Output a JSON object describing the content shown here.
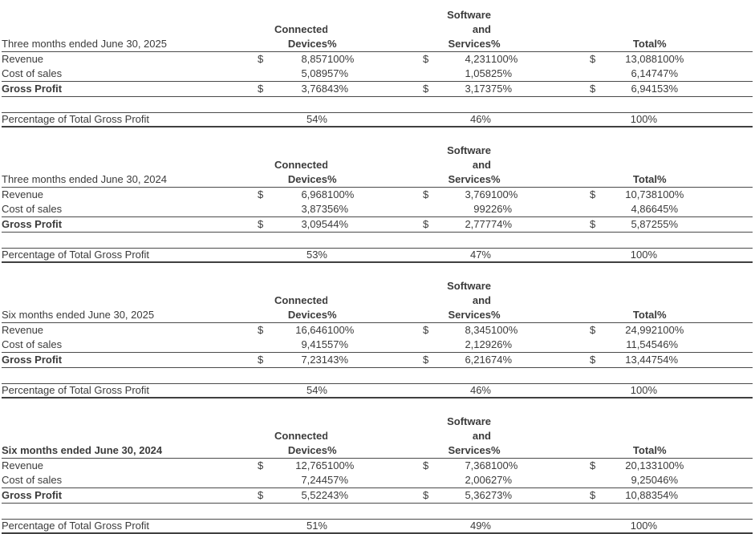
{
  "page": {
    "background": "#ffffff",
    "text_color": "#3b3b3b",
    "rule_color": "#4a4a4a"
  },
  "shared": {
    "currency_symbol": "$",
    "col_headers": {
      "connected_line1": "Connected",
      "connected_line2": "Devices",
      "software_line1": "Software",
      "software_line2": "and",
      "software_line3": "Services",
      "total": "Total",
      "percent": "%"
    },
    "row_labels": {
      "revenue": "Revenue",
      "cost_of_sales": "Cost of sales",
      "gross_profit": "Gross Profit",
      "pct_of_total": "Percentage of Total Gross Profit"
    }
  },
  "tables": [
    {
      "period": "Three months ended June 30, 2025",
      "revenue": {
        "cd": "8,857",
        "cd_pct": "100%",
        "ss": "4,231",
        "ss_pct": "100%",
        "total": "13,088",
        "total_pct": "100%"
      },
      "cost_of_sales": {
        "cd": "5,089",
        "cd_pct": "57%",
        "ss": "1,058",
        "ss_pct": "25%",
        "total": "6,147",
        "total_pct": "47%"
      },
      "gross_profit": {
        "cd": "3,768",
        "cd_pct": "43%",
        "ss": "3,173",
        "ss_pct": "75%",
        "total": "6,941",
        "total_pct": "53%"
      },
      "pct_of_total": {
        "cd": "54%",
        "ss": "46%",
        "total": "100%"
      }
    },
    {
      "period": "Three months ended June 30, 2024",
      "revenue": {
        "cd": "6,968",
        "cd_pct": "100%",
        "ss": "3,769",
        "ss_pct": "100%",
        "total": "10,738",
        "total_pct": "100%"
      },
      "cost_of_sales": {
        "cd": "3,873",
        "cd_pct": "56%",
        "ss": "992",
        "ss_pct": "26%",
        "total": "4,866",
        "total_pct": "45%"
      },
      "gross_profit": {
        "cd": "3,095",
        "cd_pct": "44%",
        "ss": "2,777",
        "ss_pct": "74%",
        "total": "5,872",
        "total_pct": "55%"
      },
      "pct_of_total": {
        "cd": "53%",
        "ss": "47%",
        "total": "100%"
      }
    },
    {
      "period": "Six months ended June 30, 2025",
      "revenue": {
        "cd": "16,646",
        "cd_pct": "100%",
        "ss": "8,345",
        "ss_pct": "100%",
        "total": "24,992",
        "total_pct": "100%"
      },
      "cost_of_sales": {
        "cd": "9,415",
        "cd_pct": "57%",
        "ss": "2,129",
        "ss_pct": "26%",
        "total": "11,545",
        "total_pct": "46%"
      },
      "gross_profit": {
        "cd": "7,231",
        "cd_pct": "43%",
        "ss": "6,216",
        "ss_pct": "74%",
        "total": "13,447",
        "total_pct": "54%"
      },
      "pct_of_total": {
        "cd": "54%",
        "ss": "46%",
        "total": "100%"
      }
    },
    {
      "period": "Six months ended June 30, 2024",
      "revenue": {
        "cd": "12,765",
        "cd_pct": "100%",
        "ss": "7,368",
        "ss_pct": "100%",
        "total": "20,133",
        "total_pct": "100%"
      },
      "cost_of_sales": {
        "cd": "7,244",
        "cd_pct": "57%",
        "ss": "2,006",
        "ss_pct": "27%",
        "total": "9,250",
        "total_pct": "46%"
      },
      "gross_profit": {
        "cd": "5,522",
        "cd_pct": "43%",
        "ss": "5,362",
        "ss_pct": "73%",
        "total": "10,883",
        "total_pct": "54%"
      },
      "pct_of_total": {
        "cd": "51%",
        "ss": "49%",
        "total": "100%"
      }
    }
  ]
}
